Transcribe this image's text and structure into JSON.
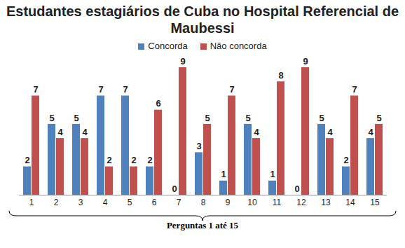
{
  "chart_data": {
    "type": "bar",
    "title": "Estudantes estagiários de Cuba no Hospital Referencial de Maubessi",
    "xlabel": "Perguntas 1 até 15",
    "categories": [
      "1",
      "2",
      "3",
      "4",
      "5",
      "6",
      "7",
      "8",
      "9",
      "10",
      "11",
      "12",
      "13",
      "14",
      "15"
    ],
    "series": [
      {
        "name": "Concorda",
        "color": "#4f81bd",
        "values": [
          2,
          5,
          5,
          7,
          7,
          2,
          0,
          3,
          1,
          5,
          1,
          0,
          5,
          2,
          4
        ]
      },
      {
        "name": "Não concorda",
        "color": "#c0504d",
        "values": [
          7,
          4,
          4,
          2,
          2,
          6,
          9,
          5,
          7,
          4,
          8,
          9,
          4,
          7,
          5
        ]
      }
    ],
    "ylim": [
      0,
      9
    ],
    "yticks": [],
    "grid": false,
    "legend": "top",
    "data_labels": true,
    "tick_labels": "x"
  }
}
